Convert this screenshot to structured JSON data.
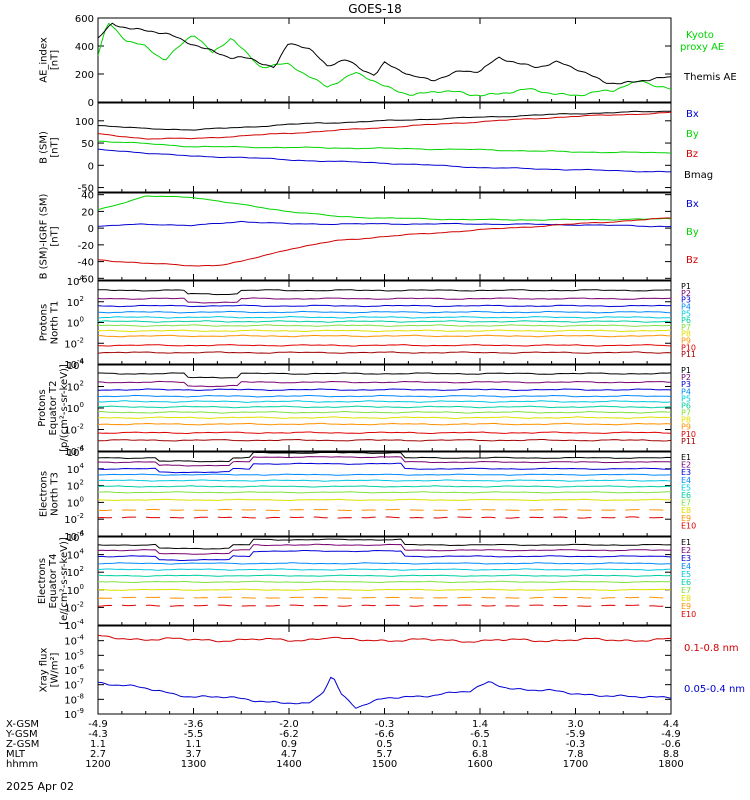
{
  "title": "GOES-18",
  "date_label": "2025 Apr 02",
  "colors": {
    "frame": "#000000",
    "black": "#000000",
    "green": "#00d400",
    "blue": "#0000d0",
    "red": "#d00000",
    "channels": [
      "#000000",
      "#7a0070",
      "#0000d8",
      "#0088ff",
      "#00c8e0",
      "#00d0a0",
      "#80e040",
      "#e0e000",
      "#ff9000",
      "#e00000",
      "#a00000"
    ]
  },
  "chart_data": [
    {
      "type": "line",
      "id": "ae",
      "ylabel": [
        "AE_index",
        "[nT]"
      ],
      "yticks": [
        "0",
        "200",
        "400",
        "600"
      ],
      "ylim": [
        0,
        600
      ],
      "legend": [
        {
          "text": "Kyoto",
          "color": "green"
        },
        {
          "text": "proxy AE",
          "color": "green"
        },
        {
          "text": "Themis AE",
          "color": "black"
        }
      ],
      "series": [
        {
          "color": "green",
          "x": [
            0,
            0.1,
            0.3,
            0.5,
            0.7,
            1.0,
            1.2,
            1.4,
            1.7,
            2.0,
            2.4,
            2.7,
            3.0,
            3.3,
            3.6,
            3.9,
            4.2,
            4.5,
            4.8,
            5.1,
            5.4,
            5.7,
            6.0
          ],
          "values": [
            330,
            560,
            430,
            400,
            310,
            480,
            340,
            470,
            250,
            260,
            120,
            200,
            110,
            60,
            70,
            55,
            65,
            80,
            60,
            60,
            75,
            160,
            90
          ]
        },
        {
          "color": "black",
          "x": [
            0,
            0.15,
            0.4,
            0.7,
            1.0,
            1.2,
            1.4,
            1.6,
            1.85,
            2.0,
            2.2,
            2.4,
            2.6,
            2.9,
            3.0,
            3.3,
            3.5,
            3.8,
            4.0,
            4.2,
            4.4,
            4.6,
            4.8,
            5.0,
            5.3,
            5.6,
            6.0
          ],
          "values": [
            450,
            570,
            520,
            480,
            420,
            370,
            310,
            300,
            250,
            440,
            380,
            250,
            300,
            200,
            280,
            170,
            160,
            230,
            210,
            310,
            280,
            260,
            280,
            230,
            150,
            140,
            170
          ]
        }
      ]
    },
    {
      "type": "line",
      "id": "bsm",
      "ylabel": [
        "B (SM)",
        "[nT]"
      ],
      "yticks": [
        "-50",
        "0",
        "50",
        "100"
      ],
      "ylim": [
        -60,
        140
      ],
      "legend": [
        {
          "text": "Bx",
          "color": "blue"
        },
        {
          "text": "By",
          "color": "green"
        },
        {
          "text": "Bz",
          "color": "red"
        },
        {
          "text": "Bmag",
          "color": "black"
        }
      ],
      "series": [
        {
          "color": "black",
          "x": [
            0,
            0.5,
            1.0,
            1.5,
            2.0,
            3.0,
            4.0,
            5.0,
            6.0
          ],
          "values": [
            90,
            82,
            80,
            85,
            92,
            100,
            108,
            116,
            122
          ]
        },
        {
          "color": "red",
          "x": [
            0,
            0.5,
            1.0,
            1.5,
            2.0,
            3.0,
            4.0,
            5.0,
            6.0
          ],
          "values": [
            70,
            60,
            60,
            66,
            72,
            85,
            98,
            110,
            118
          ]
        },
        {
          "color": "green",
          "x": [
            0,
            1.0,
            2.0,
            3.0,
            4.0,
            5.0,
            6.0
          ],
          "values": [
            55,
            42,
            40,
            38,
            35,
            30,
            28
          ]
        },
        {
          "color": "blue",
          "x": [
            0,
            0.5,
            1.0,
            1.5,
            2.0,
            3.0,
            4.0,
            5.0,
            6.0
          ],
          "values": [
            35,
            28,
            20,
            18,
            12,
            5,
            -5,
            -10,
            -15
          ]
        }
      ]
    },
    {
      "type": "line",
      "id": "bigrf",
      "ylabel": [
        "B (SM)-IGRF (SM)",
        "[nT]"
      ],
      "yticks": [
        "-60",
        "-40",
        "-20",
        "0",
        "20",
        "40"
      ],
      "ylim": [
        -62,
        42
      ],
      "legend": [
        {
          "text": "Bx",
          "color": "blue"
        },
        {
          "text": "By",
          "color": "green"
        },
        {
          "text": "Bz",
          "color": "red"
        }
      ],
      "series": [
        {
          "color": "green",
          "x": [
            0,
            0.5,
            1.0,
            1.5,
            2.0,
            2.5,
            3.0,
            4.0,
            5.0,
            6.0
          ],
          "values": [
            22,
            38,
            37,
            28,
            20,
            14,
            12,
            10,
            10,
            11
          ]
        },
        {
          "color": "blue",
          "x": [
            0,
            0.5,
            1.0,
            1.5,
            2.0,
            3.0,
            4.0,
            5.0,
            6.0
          ],
          "values": [
            2,
            5,
            3,
            8,
            5,
            5,
            5,
            4,
            2
          ]
        },
        {
          "color": "red",
          "x": [
            0,
            0.5,
            1.0,
            1.3,
            1.5,
            2.0,
            2.5,
            3.0,
            4.0,
            5.0,
            6.0
          ],
          "values": [
            -38,
            -42,
            -45,
            -44,
            -40,
            -25,
            -15,
            -10,
            -2,
            5,
            12
          ]
        }
      ]
    },
    {
      "type": "line",
      "id": "protons-t1",
      "ylabel": [
        "Protons",
        "North T1"
      ],
      "logscale": true,
      "ylim": [
        -4,
        4
      ],
      "tick_base": "10",
      "tick_exps": [
        "-4",
        "-2",
        "0",
        "2",
        "4"
      ],
      "channels": [
        "P1",
        "P2",
        "P3",
        "P4",
        "P5",
        "P6",
        "P7",
        "P8",
        "P9",
        "P10",
        "P11"
      ],
      "levels": [
        3.1,
        2.3,
        1.6,
        1.0,
        0.5,
        0.1,
        -0.3,
        -0.8,
        -1.3,
        -2.2,
        -2.9
      ]
    },
    {
      "type": "line",
      "id": "protons-t2",
      "ylabel": [
        "Protons",
        "Equator T2",
        "[p/(cm²-s-sr-keV)]"
      ],
      "logscale": true,
      "ylim": [
        -4,
        4
      ],
      "tick_base": "10",
      "tick_exps": [
        "-4",
        "-2",
        "0",
        "2",
        "4"
      ],
      "channels": [
        "P1",
        "P2",
        "P3",
        "P4",
        "P5",
        "P6",
        "P7",
        "P8",
        "P9",
        "P10",
        "P11"
      ],
      "levels": [
        3.2,
        2.4,
        1.7,
        1.1,
        0.6,
        0.1,
        -0.4,
        -0.9,
        -1.5,
        -2.3,
        -3.0
      ]
    },
    {
      "type": "line",
      "id": "electrons-t3",
      "ylabel": [
        "Electrons",
        "North T3"
      ],
      "logscale": true,
      "ylim": [
        -4,
        6
      ],
      "tick_base": "10",
      "tick_exps": [
        "-4",
        "-2",
        "0",
        "2",
        "4",
        "6"
      ],
      "channels": [
        "E1",
        "E2",
        "E3",
        "E4",
        "E5",
        "E6",
        "E7",
        "E8",
        "E9",
        "E10"
      ],
      "levels": [
        5.3,
        4.8,
        4.0,
        3.3,
        2.6,
        1.9,
        1.2,
        0.3,
        -0.9,
        -1.8
      ]
    },
    {
      "type": "line",
      "id": "electrons-t4",
      "ylabel": [
        "Electrons",
        "Equator T4",
        "[e/(cm²-s-sr-keV)]"
      ],
      "logscale": true,
      "ylim": [
        -4,
        6
      ],
      "tick_base": "10",
      "tick_exps": [
        "-4",
        "-2",
        "0",
        "2",
        "4",
        "6"
      ],
      "channels": [
        "E1",
        "E2",
        "E3",
        "E4",
        "E5",
        "E6",
        "E7",
        "E8",
        "E9",
        "E10"
      ],
      "levels": [
        5.1,
        4.5,
        3.8,
        3.0,
        2.3,
        1.6,
        0.9,
        0.0,
        -0.9,
        -1.8
      ]
    },
    {
      "type": "line",
      "id": "xray",
      "ylabel": [
        "Xray flux",
        "[W/m²]"
      ],
      "logscale": true,
      "ylim": [
        -9,
        -3
      ],
      "tick_base": "10",
      "tick_exps": [
        "-9",
        "-8",
        "-7",
        "-6",
        "-5",
        "-4"
      ],
      "legend": [
        {
          "text": "0.1-0.8 nm",
          "color": "red"
        },
        {
          "text": "0.05-0.4 nm",
          "color": "blue"
        }
      ],
      "series": [
        {
          "color": "red",
          "x": [
            0,
            0.3,
            1.0,
            2.0,
            2.38,
            2.45,
            2.55,
            3.0,
            4.0,
            5.0,
            6.0
          ],
          "values": [
            -3.75,
            -3.85,
            -3.95,
            -3.95,
            -3.85,
            -3.75,
            -3.95,
            -3.95,
            -4.0,
            -3.95,
            -3.95
          ]
        },
        {
          "color": "blue",
          "x": [
            0,
            0.2,
            0.5,
            0.8,
            1.0,
            1.3,
            1.6,
            1.9,
            2.2,
            2.35,
            2.45,
            2.55,
            2.7,
            3.0,
            3.3,
            3.6,
            3.9,
            4.1,
            4.3,
            4.6,
            5.0,
            5.3,
            5.6,
            6.0
          ],
          "values": [
            -6.8,
            -7.0,
            -7.3,
            -7.6,
            -7.8,
            -7.9,
            -8.0,
            -8.2,
            -8.4,
            -7.6,
            -6.3,
            -7.6,
            -8.5,
            -8.0,
            -7.8,
            -7.6,
            -7.5,
            -6.8,
            -7.2,
            -7.4,
            -7.6,
            -7.7,
            -7.9,
            -7.8
          ]
        }
      ]
    }
  ],
  "x_axis": {
    "row_labels": [
      "X-GSM",
      "Y-GSM",
      "Z-GSM",
      "MLT",
      "hhmm"
    ],
    "columns": [
      [
        "-4.9",
        "-4.3",
        "1.1",
        "2.7",
        "1200"
      ],
      [
        "-3.6",
        "-5.5",
        "1.1",
        "3.7",
        "1300"
      ],
      [
        "-2.0",
        "-6.2",
        "0.9",
        "4.7",
        "1400"
      ],
      [
        "-0.3",
        "-6.6",
        "0.5",
        "5.7",
        "1500"
      ],
      [
        "1.4",
        "-6.5",
        "0.1",
        "6.8",
        "1600"
      ],
      [
        "3.0",
        "-5.9",
        "-0.3",
        "7.8",
        "1700"
      ],
      [
        "4.4",
        "-4.9",
        "-0.6",
        "8.8",
        "1800"
      ]
    ]
  }
}
